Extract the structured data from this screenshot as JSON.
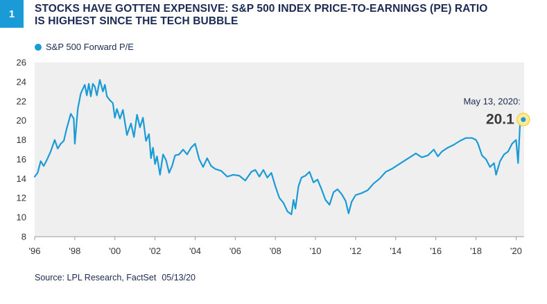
{
  "figure_number": "1",
  "title_lines": [
    "STOCKS HAVE GOTTEN EXPENSIVE: S&P 500 INDEX PRICE-TO-EARNINGS (PE) RATIO",
    "IS HIGHEST SINCE THE TECH BUBBLE"
  ],
  "source": "Source: LPL Research, FactSet",
  "source_date": "05/13/20",
  "colors": {
    "line": "#1a9ad6",
    "badge": "#1a9ad6",
    "title": "#1a2a52",
    "plot_bg": "#efefef",
    "highlight": "#f6d23a"
  },
  "chart_data": {
    "type": "line",
    "title": "",
    "xlabel": "",
    "ylabel": "",
    "xlim": [
      1996,
      2020.4
    ],
    "ylim": [
      8,
      26
    ],
    "yticks": [
      8,
      10,
      12,
      14,
      16,
      18,
      20,
      22,
      24,
      26
    ],
    "xticks": [
      1996,
      1998,
      2000,
      2002,
      2004,
      2006,
      2008,
      2010,
      2012,
      2014,
      2016,
      2018,
      2020
    ],
    "xtick_labels": [
      "'96",
      "'98",
      "'00",
      "'02",
      "'04",
      "'06",
      "'08",
      "'10",
      "'12",
      "'14",
      "'16",
      "'18",
      "'20"
    ],
    "grid": false,
    "legend_position": "top-left",
    "series": [
      {
        "name": "S&P 500 Forward P/E",
        "x": [
          1996.0,
          1996.15,
          1996.3,
          1996.45,
          1996.6,
          1996.8,
          1997.0,
          1997.15,
          1997.3,
          1997.45,
          1997.6,
          1997.8,
          1997.95,
          1998.0,
          1998.15,
          1998.3,
          1998.5,
          1998.6,
          1998.7,
          1998.8,
          1998.9,
          1999.0,
          1999.1,
          1999.25,
          1999.4,
          1999.5,
          1999.6,
          1999.75,
          1999.9,
          2000.0,
          2000.1,
          2000.25,
          2000.4,
          2000.6,
          2000.8,
          2000.95,
          2001.1,
          2001.25,
          2001.4,
          2001.55,
          2001.7,
          2001.8,
          2001.9,
          2002.0,
          2002.1,
          2002.25,
          2002.4,
          2002.55,
          2002.7,
          2002.85,
          2003.0,
          2003.2,
          2003.4,
          2003.6,
          2003.8,
          2004.0,
          2004.2,
          2004.4,
          2004.6,
          2004.8,
          2005.0,
          2005.3,
          2005.6,
          2005.9,
          2006.2,
          2006.5,
          2006.8,
          2007.0,
          2007.2,
          2007.4,
          2007.6,
          2007.8,
          2008.0,
          2008.2,
          2008.4,
          2008.6,
          2008.8,
          2008.9,
          2009.0,
          2009.15,
          2009.3,
          2009.5,
          2009.7,
          2009.9,
          2010.1,
          2010.3,
          2010.5,
          2010.7,
          2010.9,
          2011.1,
          2011.3,
          2011.5,
          2011.65,
          2011.8,
          2012.0,
          2012.3,
          2012.6,
          2012.9,
          2013.2,
          2013.5,
          2013.8,
          2014.1,
          2014.4,
          2014.7,
          2015.0,
          2015.3,
          2015.6,
          2015.9,
          2016.1,
          2016.3,
          2016.6,
          2016.9,
          2017.2,
          2017.5,
          2017.8,
          2018.0,
          2018.1,
          2018.3,
          2018.5,
          2018.7,
          2018.9,
          2019.0,
          2019.2,
          2019.4,
          2019.6,
          2019.8,
          2020.0,
          2020.1,
          2020.2,
          2020.3,
          2020.36
        ],
        "values": [
          14.2,
          14.6,
          15.8,
          15.3,
          15.9,
          16.8,
          18.0,
          17.1,
          17.6,
          17.9,
          19.2,
          20.7,
          20.2,
          17.6,
          21.2,
          22.8,
          23.7,
          22.6,
          23.8,
          22.5,
          23.8,
          23.5,
          22.6,
          24.2,
          23.0,
          23.7,
          22.5,
          22.1,
          21.8,
          20.3,
          21.2,
          20.2,
          21.1,
          18.5,
          19.7,
          18.3,
          20.6,
          19.3,
          20.3,
          17.9,
          18.6,
          16.1,
          17.2,
          15.5,
          16.3,
          14.4,
          16.5,
          15.9,
          14.6,
          15.3,
          16.4,
          16.5,
          17.0,
          16.5,
          17.2,
          17.6,
          16.0,
          15.2,
          16.1,
          15.3,
          15.0,
          14.8,
          14.2,
          14.4,
          14.3,
          13.8,
          14.7,
          14.9,
          14.2,
          14.9,
          14.1,
          14.6,
          13.2,
          12.0,
          11.5,
          10.6,
          10.3,
          11.8,
          10.9,
          13.2,
          14.1,
          14.3,
          14.7,
          13.6,
          13.9,
          12.9,
          11.8,
          11.3,
          12.6,
          12.9,
          12.4,
          11.7,
          10.4,
          11.6,
          12.3,
          12.5,
          12.8,
          13.5,
          14.0,
          14.7,
          15.0,
          15.4,
          15.8,
          16.2,
          16.6,
          16.2,
          16.4,
          17.0,
          16.3,
          16.8,
          17.2,
          17.5,
          17.9,
          18.2,
          18.2,
          18.0,
          17.6,
          16.4,
          16.0,
          15.2,
          15.6,
          14.4,
          15.8,
          16.5,
          16.8,
          17.6,
          18.0,
          15.6,
          19.8,
          20.2,
          20.1
        ]
      }
    ],
    "annotation": {
      "label": "May 13, 2020:",
      "value": "20.1",
      "x": 2020.36,
      "y": 20.1
    }
  }
}
